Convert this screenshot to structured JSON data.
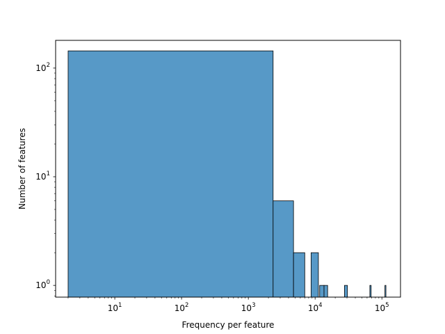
{
  "chart_data": {
    "type": "bar",
    "title": "",
    "xlabel": "Frequency per feature",
    "ylabel": "Number of features",
    "xscale": "log",
    "yscale": "log",
    "xlim": [
      1.3,
      190000
    ],
    "ylim": [
      0.78,
      180
    ],
    "grid": false,
    "bar_color": "#5799C7",
    "edge_color": "#000000",
    "x_ticks": [
      {
        "value": 10,
        "label": "10^1"
      },
      {
        "value": 100,
        "label": "10^2"
      },
      {
        "value": 1000,
        "label": "10^3"
      },
      {
        "value": 10000,
        "label": "10^4"
      },
      {
        "value": 100000,
        "label": "10^5"
      }
    ],
    "y_ticks": [
      {
        "value": 1,
        "label": "10^0"
      },
      {
        "value": 10,
        "label": "10^1"
      },
      {
        "value": 100,
        "label": "10^2"
      }
    ],
    "bins": [
      {
        "x0": 2,
        "x1": 2350,
        "count": 144
      },
      {
        "x0": 2350,
        "x1": 4750,
        "count": 6
      },
      {
        "x0": 4750,
        "x1": 7000,
        "count": 2
      },
      {
        "x0": 8700,
        "x1": 11200,
        "count": 2
      },
      {
        "x0": 11700,
        "x1": 13600,
        "count": 1
      },
      {
        "x0": 13600,
        "x1": 15400,
        "count": 1
      },
      {
        "x0": 27500,
        "x1": 30500,
        "count": 1
      },
      {
        "x0": 66000,
        "x1": 69000,
        "count": 1
      },
      {
        "x0": 111000,
        "x1": 115000,
        "count": 1
      }
    ]
  }
}
